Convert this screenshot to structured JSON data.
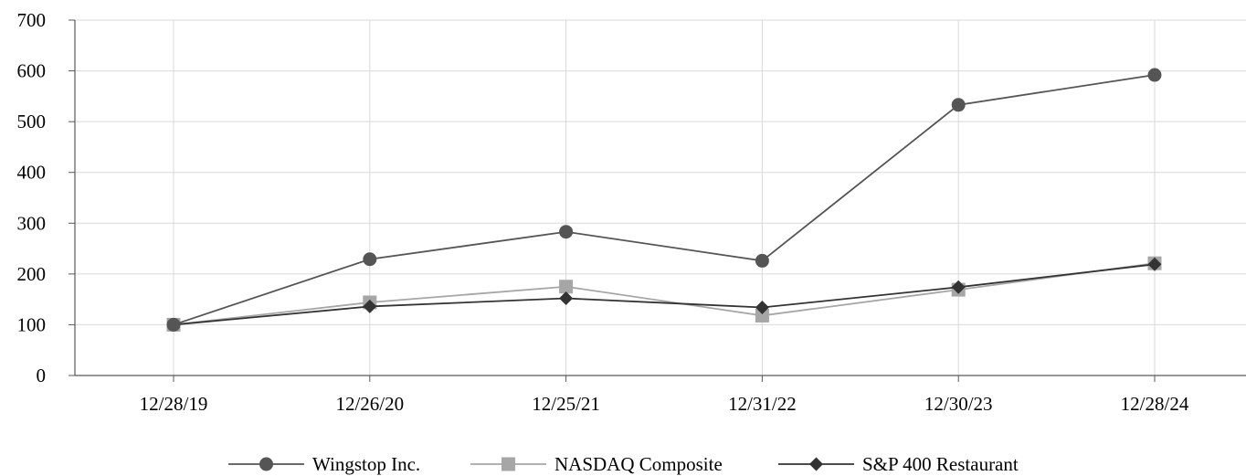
{
  "chart_data": {
    "type": "line",
    "title": "",
    "xlabel": "",
    "ylabel": "",
    "categories": [
      "12/28/19",
      "12/26/20",
      "12/25/21",
      "12/31/22",
      "12/30/23",
      "12/28/24"
    ],
    "ylim": [
      0,
      700
    ],
    "yticks": [
      0,
      100,
      200,
      300,
      400,
      500,
      600,
      700
    ],
    "grid": true,
    "legend_position": "bottom",
    "series": [
      {
        "name": "Wingstop Inc.",
        "marker": "circle",
        "color": "#555555",
        "values": [
          100,
          229,
          283,
          226,
          533,
          592
        ]
      },
      {
        "name": "NASDAQ Composite",
        "marker": "square",
        "color": "#a6a6a6",
        "values": [
          100,
          144,
          175,
          118,
          169,
          221
        ]
      },
      {
        "name": "S&P 400 Restaurant",
        "marker": "diamond",
        "color": "#333333",
        "values": [
          100,
          136,
          152,
          134,
          174,
          219
        ]
      }
    ]
  }
}
